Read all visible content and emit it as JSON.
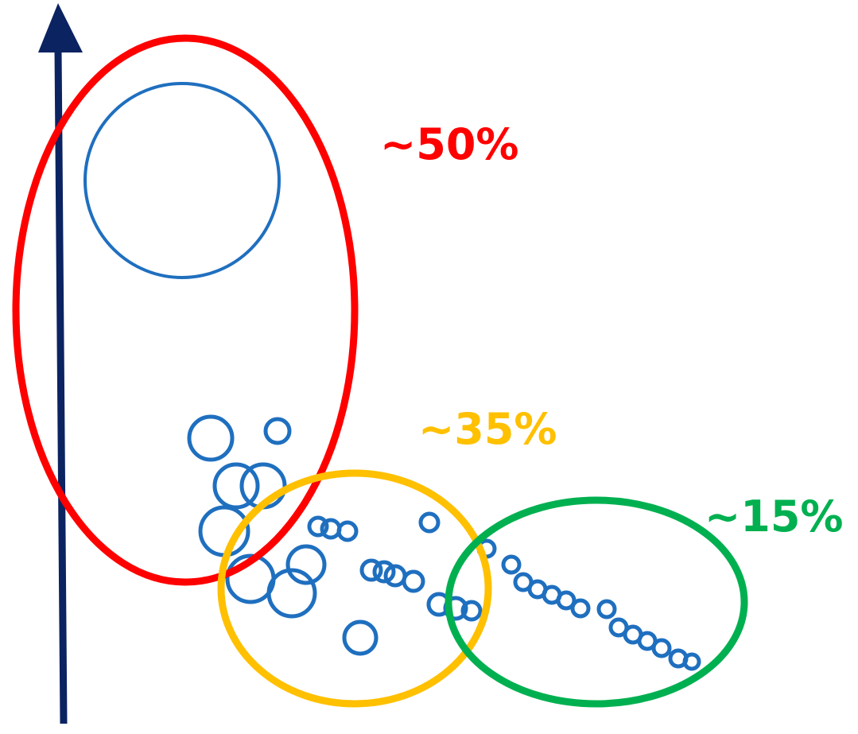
{
  "colors": {
    "axis": "#0b2361",
    "circle": "#1f6fbf",
    "group_top": "#ff0000",
    "group_middle": "#ffc000",
    "group_bottom": "#00b050"
  },
  "axis": {
    "direction": "up",
    "label": ""
  },
  "groups": [
    {
      "id": "top",
      "label": "~50%",
      "color": "#ff0000"
    },
    {
      "id": "middle",
      "label": "~35%",
      "color": "#ffc000"
    },
    {
      "id": "bottom",
      "label": "~15%",
      "color": "#00b050"
    }
  ]
}
